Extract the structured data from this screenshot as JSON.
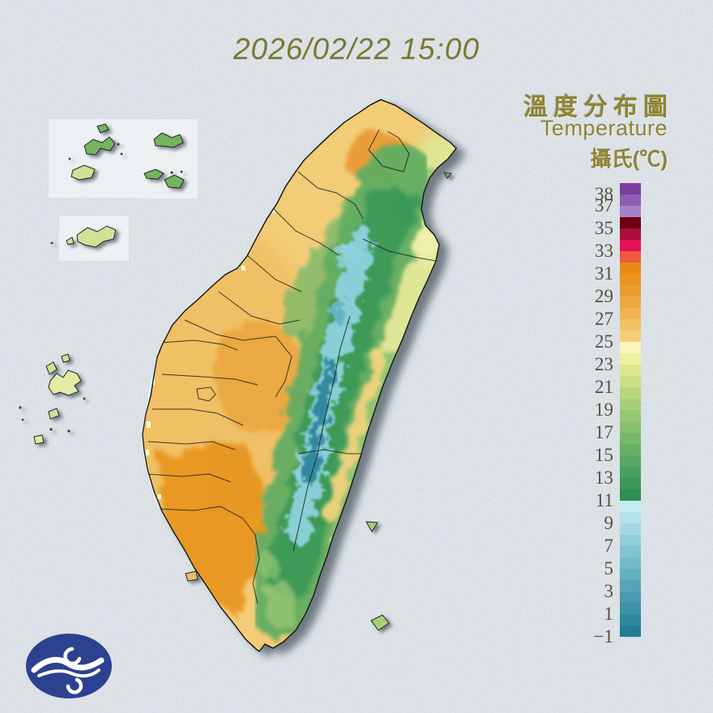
{
  "header": {
    "datetime": "2026/02/22 15:00",
    "color": "#7b7830"
  },
  "legend": {
    "title_zh": "溫度分布圖",
    "title_en": "Temperature",
    "unit": "攝氏(℃)",
    "text_color": "#8d8434",
    "tick_color": "#54503c",
    "bar": {
      "top_value": 39,
      "bottom_value": -1,
      "segment_colors_top_to_bottom": [
        "#7b3da0",
        "#8c5eb1",
        "#a781c6",
        "#6d0013",
        "#ab0e3d",
        "#e51158",
        "#ef5a3e",
        "#e88a15",
        "#ea9321",
        "#eb9d30",
        "#eda841",
        "#efb352",
        "#f2c065",
        "#f5ce78",
        "#fbf5bb",
        "#ebf19e",
        "#dbe88e",
        "#cae083",
        "#b9d87d",
        "#a8d078",
        "#98c874",
        "#88c070",
        "#78b86c",
        "#68b068",
        "#58a863",
        "#49a05e",
        "#3a9859",
        "#2b9052",
        "#c3ecf3",
        "#b3e2eb",
        "#a3d8e3",
        "#93cedb",
        "#83c4d2",
        "#74baca",
        "#65b0c1",
        "#57a6b8",
        "#499cb0",
        "#3c92a7",
        "#2f889e",
        "#237e95"
      ]
    },
    "ticks": [
      {
        "value": 38,
        "label": "38"
      },
      {
        "value": 37,
        "label": "37"
      },
      {
        "value": 35,
        "label": "35"
      },
      {
        "value": 33,
        "label": "33"
      },
      {
        "value": 31,
        "label": "31"
      },
      {
        "value": 29,
        "label": "29"
      },
      {
        "value": 27,
        "label": "27"
      },
      {
        "value": 25,
        "label": "25"
      },
      {
        "value": 23,
        "label": "23"
      },
      {
        "value": 21,
        "label": "21"
      },
      {
        "value": 19,
        "label": "19"
      },
      {
        "value": 17,
        "label": "17"
      },
      {
        "value": 15,
        "label": "15"
      },
      {
        "value": 13,
        "label": "13"
      },
      {
        "value": 11,
        "label": "11"
      },
      {
        "value": 9,
        "label": "9"
      },
      {
        "value": 7,
        "label": "7"
      },
      {
        "value": 5,
        "label": "5"
      },
      {
        "value": 3,
        "label": "3"
      },
      {
        "value": 1,
        "label": "1"
      },
      {
        "value": -1,
        "label": "−1"
      }
    ]
  },
  "map": {
    "colors": {
      "sea_background": "#c9d2d9",
      "plains_warm": "#f2cc77",
      "strong_orange": "#e7941d",
      "mountain_green": "#58a863",
      "high_mountain_cyan": "#8ed2de",
      "highest_teal": "#2c8199",
      "offshore_island_pale": "#e3eca2",
      "offshore_island_green": "#76b35f",
      "coastline": "#15150f"
    }
  },
  "logo": {
    "background": "#2c418f",
    "swirl": "#ffffff"
  }
}
